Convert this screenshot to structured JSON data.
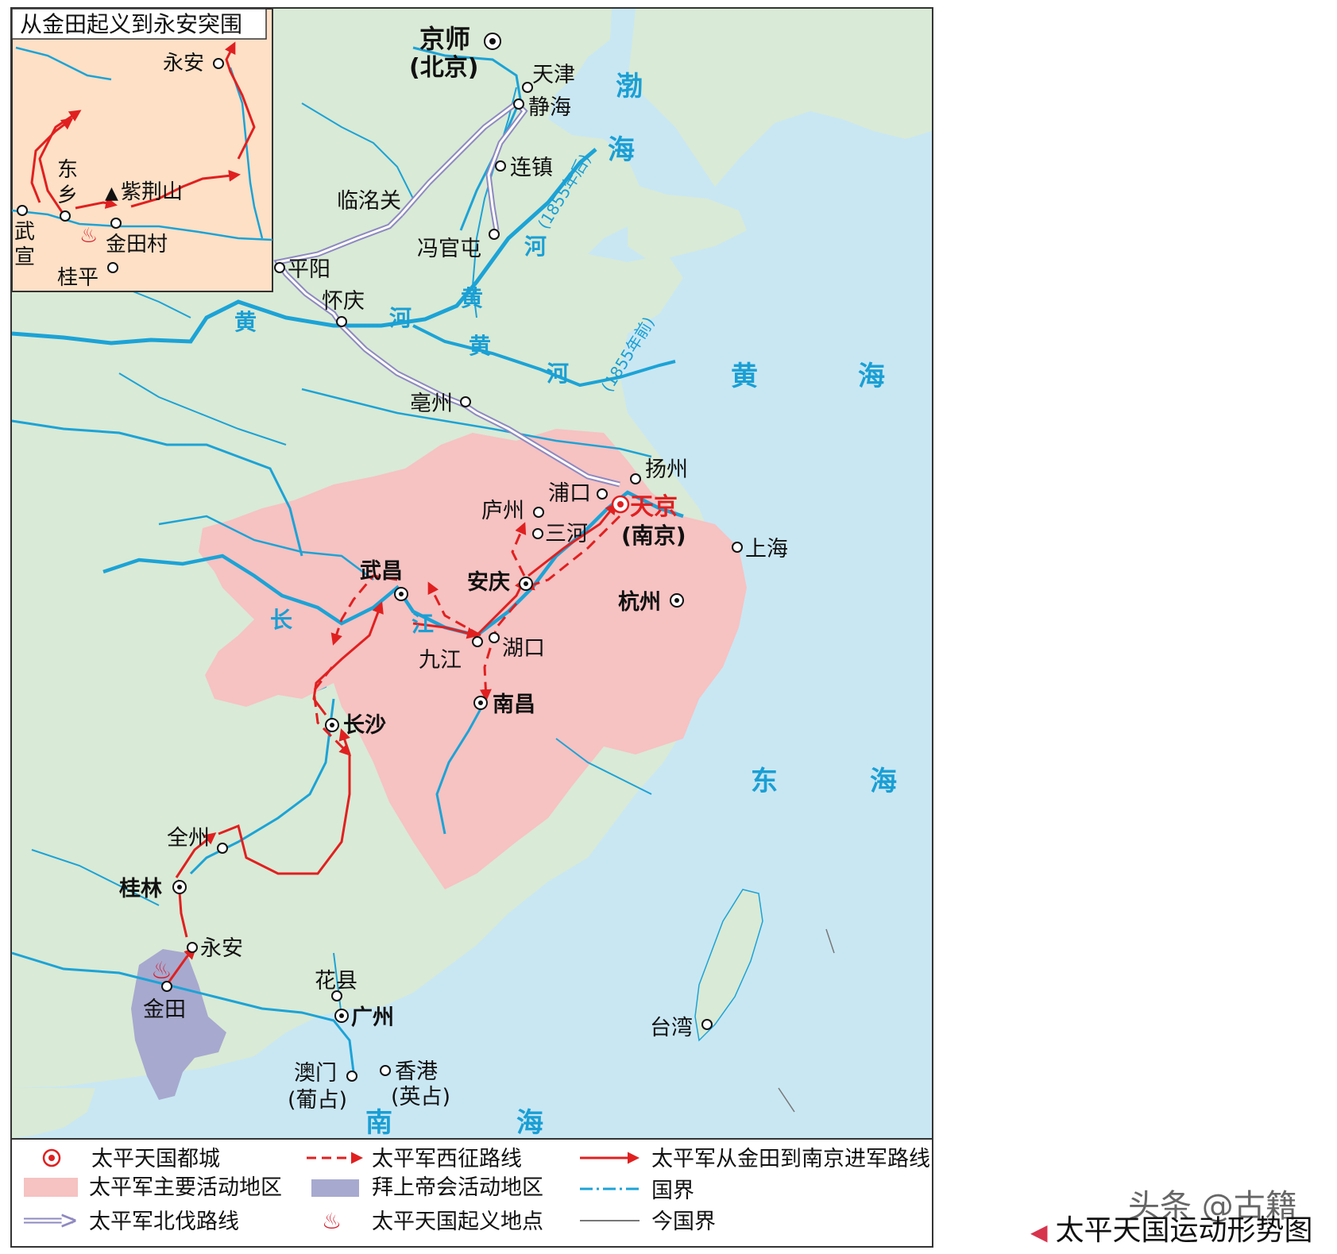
{
  "map": {
    "title": "太平天国运动形势图",
    "watermark": "头条 @古籍"
  },
  "colors": {
    "land": "#d9ead6",
    "sea": "#c9e7f3",
    "river": "#1ca3d6",
    "taiping_area": "#f6c2c2",
    "bai_shangdi_area": "#a7a9cf",
    "red_route": "#e02020",
    "north_route": "#a9a6cc",
    "inset_bg": "#fde0c6"
  },
  "inset": {
    "title": "从金田起义到永安突围",
    "places": {
      "yongan": "永安",
      "dongxiang_1": "东",
      "dongxiang_2": "乡",
      "zijingshan": "紫荆山",
      "jintiancun": "金田村",
      "wuxuan_1": "武",
      "wuxuan_2": "宣",
      "guiping": "桂平"
    }
  },
  "places": {
    "jingshi": "京师",
    "beijing": "(北京)",
    "tianjin": "天津",
    "jinghai": "静海",
    "lianzhen": "连镇",
    "linmingguan": "临洺关",
    "fengguantun": "冯官屯",
    "pingyang": "平阳",
    "huaiqing": "怀庆",
    "bozhou": "亳州",
    "yangzhou": "扬州",
    "pukou": "浦口",
    "luzhou": "庐州",
    "sanhe": "三河",
    "tianjing": "天京",
    "nanjing": "(南京)",
    "shanghai": "上海",
    "hangzhou": "杭州",
    "wuchang": "武昌",
    "anqing": "安庆",
    "jiujiang": "九江",
    "hukou": "湖口",
    "nanchang": "南昌",
    "changsha": "长沙",
    "quanzhou": "全州",
    "guilin": "桂林",
    "yongan": "永安",
    "jintian": "金田",
    "huaxian": "花县",
    "guangzhou": "广州",
    "macau": "澳门",
    "macau_note": "(葡占)",
    "hongkong": "香港",
    "hongkong_note": "(英占)",
    "taiwan": "台湾"
  },
  "water": {
    "bohai_1": "渤",
    "bohai_2": "海",
    "huanghai_1": "黄",
    "huanghai_2": "海",
    "donghai_1": "东",
    "donghai_2": "海",
    "nanhai_1": "南",
    "nanhai_2": "海",
    "huanghe_w1": "黄",
    "huanghe_w2": "河",
    "huanghe_c1": "黄",
    "huanghe_c2": "河",
    "huanghe_n1": "黄",
    "huanghe_n2": "河",
    "after_1855": "(1855年后)",
    "before_1855": "(1855年前)",
    "changjiang_1": "长",
    "changjiang_2": "江"
  },
  "legend": {
    "capital": "太平天国都城",
    "main_area": "太平军主要活动地区",
    "north_route": "太平军北伐路线",
    "west_route": "太平军西征路线",
    "bai_area": "拜上帝会活动地区",
    "uprising_site": "太平天国起义地点",
    "march_route": "太平军从金田到南京进军路线",
    "national_border": "国界",
    "modern_border": "今国界"
  }
}
